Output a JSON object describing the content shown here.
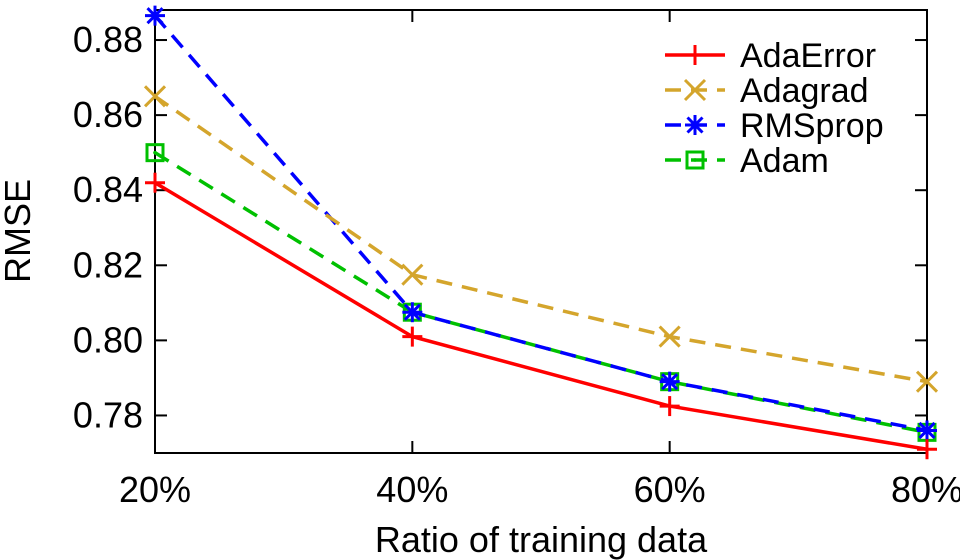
{
  "chart_data": {
    "type": "line",
    "title": "",
    "xlabel": "Ratio of training data",
    "ylabel": "RMSE",
    "categories": [
      "20%",
      "40%",
      "60%",
      "80%"
    ],
    "ylim": [
      0.77,
      0.888
    ],
    "yticks": [
      "0.78",
      "0.80",
      "0.82",
      "0.84",
      "0.86",
      "0.88"
    ],
    "grid": false,
    "legend_position": "top-right",
    "series": [
      {
        "name": "AdaError",
        "values": [
          0.842,
          0.801,
          0.7825,
          0.771
        ],
        "color": "#ff0000",
        "marker": "plus",
        "dashed": false
      },
      {
        "name": "Adagrad",
        "values": [
          0.865,
          0.8175,
          0.801,
          0.789
        ],
        "color": "#d4a52c",
        "marker": "x",
        "dashed": true
      },
      {
        "name": "RMSprop",
        "values": [
          0.8865,
          0.8075,
          0.789,
          0.776
        ],
        "color": "#0000ff",
        "marker": "star",
        "dashed": true
      },
      {
        "name": "Adam",
        "values": [
          0.85,
          0.8075,
          0.789,
          0.7755
        ],
        "color": "#00c000",
        "marker": "square",
        "dashed": true
      }
    ]
  }
}
